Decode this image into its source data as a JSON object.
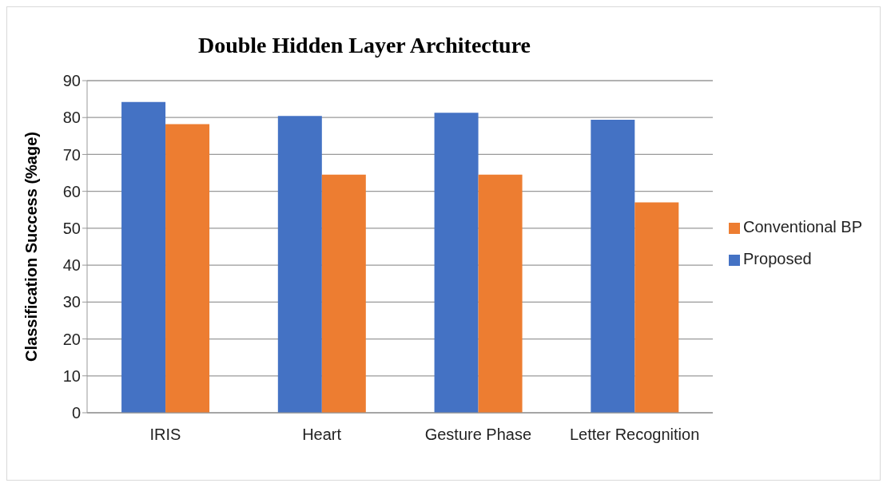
{
  "chart_data": {
    "type": "bar",
    "title": "Double Hidden Layer Architecture",
    "ylabel": "Classification Success (%age)",
    "categories": [
      "IRIS",
      "Heart",
      "Gesture Phase",
      "Letter Recognition"
    ],
    "series": [
      {
        "name": "Proposed",
        "color": "#4472c4",
        "values": [
          84.2,
          80.4,
          81.3,
          79.4
        ]
      },
      {
        "name": "Conventional BP",
        "color": "#ed7d31",
        "values": [
          78.2,
          64.5,
          64.5,
          57.0
        ]
      }
    ],
    "ylim": [
      0,
      90
    ],
    "yticks": [
      0,
      10,
      20,
      30,
      40,
      50,
      60,
      70,
      80,
      90
    ],
    "grid": "y",
    "legend": "right"
  }
}
